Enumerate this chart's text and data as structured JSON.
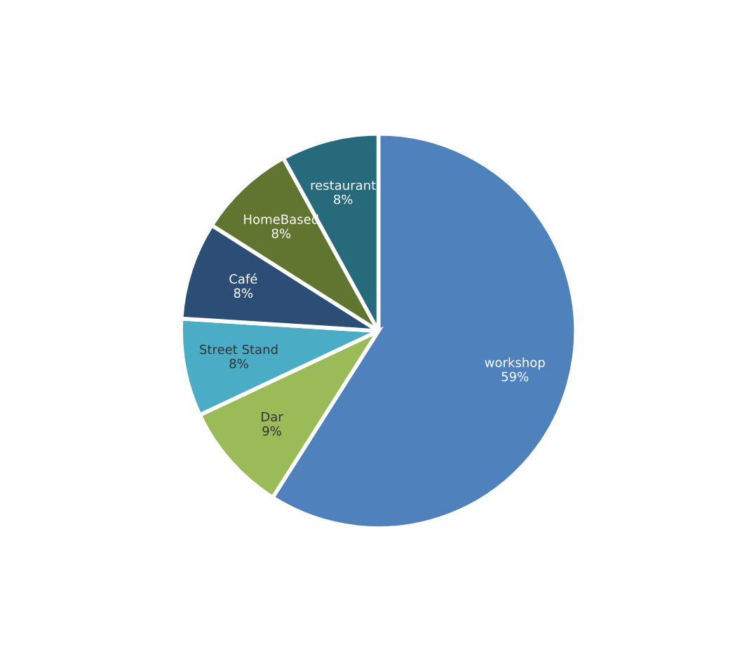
{
  "chart_data": {
    "type": "pie",
    "categories": [
      "workshop",
      "Dar",
      "Street Stand",
      "Café",
      "HomeBased",
      "restaurant"
    ],
    "values": [
      59,
      9,
      8,
      8,
      8,
      8
    ],
    "colors": [
      "#4f81bd",
      "#9bbb59",
      "#4bacc6",
      "#2c4d75",
      "#5f7530",
      "#276a7c"
    ],
    "value_labels": [
      "59%",
      "9%",
      "8%",
      "8%",
      "8%",
      "8%"
    ]
  }
}
